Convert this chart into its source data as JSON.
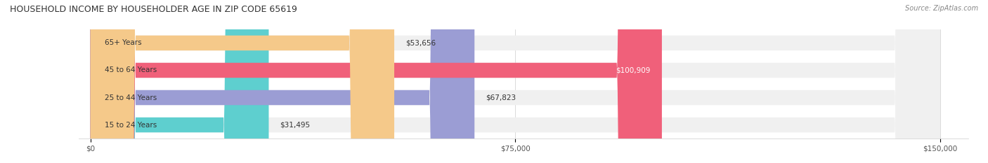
{
  "title": "HOUSEHOLD INCOME BY HOUSEHOLDER AGE IN ZIP CODE 65619",
  "source": "Source: ZipAtlas.com",
  "categories": [
    "15 to 24 Years",
    "25 to 44 Years",
    "45 to 64 Years",
    "65+ Years"
  ],
  "values": [
    31495,
    67823,
    100909,
    53656
  ],
  "bar_colors": [
    "#5ecfcf",
    "#9b9dd4",
    "#f0607a",
    "#f5c98a"
  ],
  "bar_bg_color": "#f0f0f0",
  "xmax": 150000,
  "xticks": [
    0,
    75000,
    150000
  ],
  "xtick_labels": [
    "$0",
    "$75,000",
    "$150,000"
  ],
  "label_colors": [
    "#333333",
    "#333333",
    "#ffffff",
    "#333333"
  ],
  "figsize": [
    14.06,
    2.33
  ],
  "dpi": 100
}
